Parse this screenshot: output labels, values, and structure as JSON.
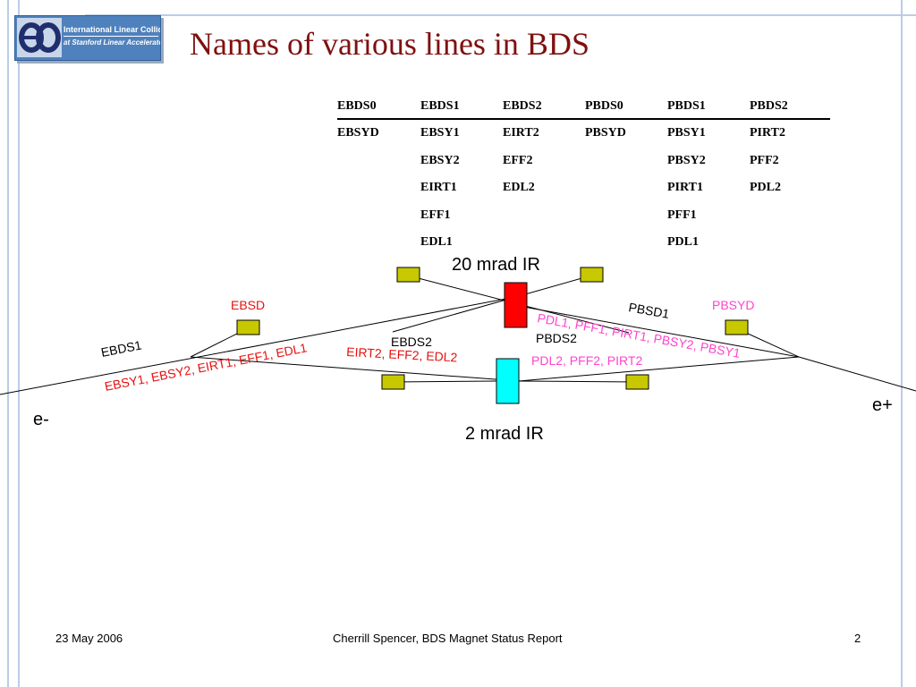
{
  "slide": {
    "title": "Names of various lines in BDS",
    "logo": {
      "line1": "International Linear Collider",
      "line2": "at Stanford Linear Accelerator Center"
    }
  },
  "table": {
    "headers": [
      "EBDS0",
      "EBDS1",
      "EBDS2",
      "PBDS0",
      "PBDS1",
      "PBDS2"
    ],
    "rows": [
      [
        "EBSYD",
        "EBSY1",
        "EIRT2",
        "PBSYD",
        "PBSY1",
        "PIRT2"
      ],
      [
        "",
        "EBSY2",
        "EFF2",
        "",
        "PBSY2",
        "PFF2"
      ],
      [
        "",
        "EIRT1",
        "EDL2",
        "",
        "PIRT1",
        "PDL2"
      ],
      [
        "",
        "EFF1",
        "",
        "",
        "PFF1",
        ""
      ],
      [
        "",
        "EDL1",
        "",
        "",
        "PDL1",
        ""
      ]
    ]
  },
  "diagram": {
    "label_20mrad": "20 mrad IR",
    "label_2mrad": "2 mrad IR",
    "label_ebsd": "EBSD",
    "label_pbsyd": "PBSYD",
    "label_ebds1": "EBDS1",
    "label_ebds2": "EBDS2",
    "label_pbsd1": "PBSD1",
    "label_pbds2": "PBDS2",
    "label_e_minus": "e-",
    "label_e_plus": "e+",
    "label_e_lines_1": "EBSY1, EBSY2, EIRT1, EFF1, EDL1",
    "label_e_lines_2": "EIRT2, EFF2, EDL2",
    "label_p_lines_1": "PDL1, PFF1, PIRT1, PBSY2, PBSY1",
    "label_p_lines_2": "PDL2, PFF2, PIRT2",
    "colors": {
      "red_text": "#e81010",
      "pink_text": "#ff44cc",
      "ir20": "#ff0000",
      "ir2": "#00ffff",
      "magnet": "#c8c800"
    }
  },
  "footer": {
    "date": "23 May 2006",
    "center": "Cherrill Spencer, BDS Magnet Status Report",
    "page": "2"
  }
}
